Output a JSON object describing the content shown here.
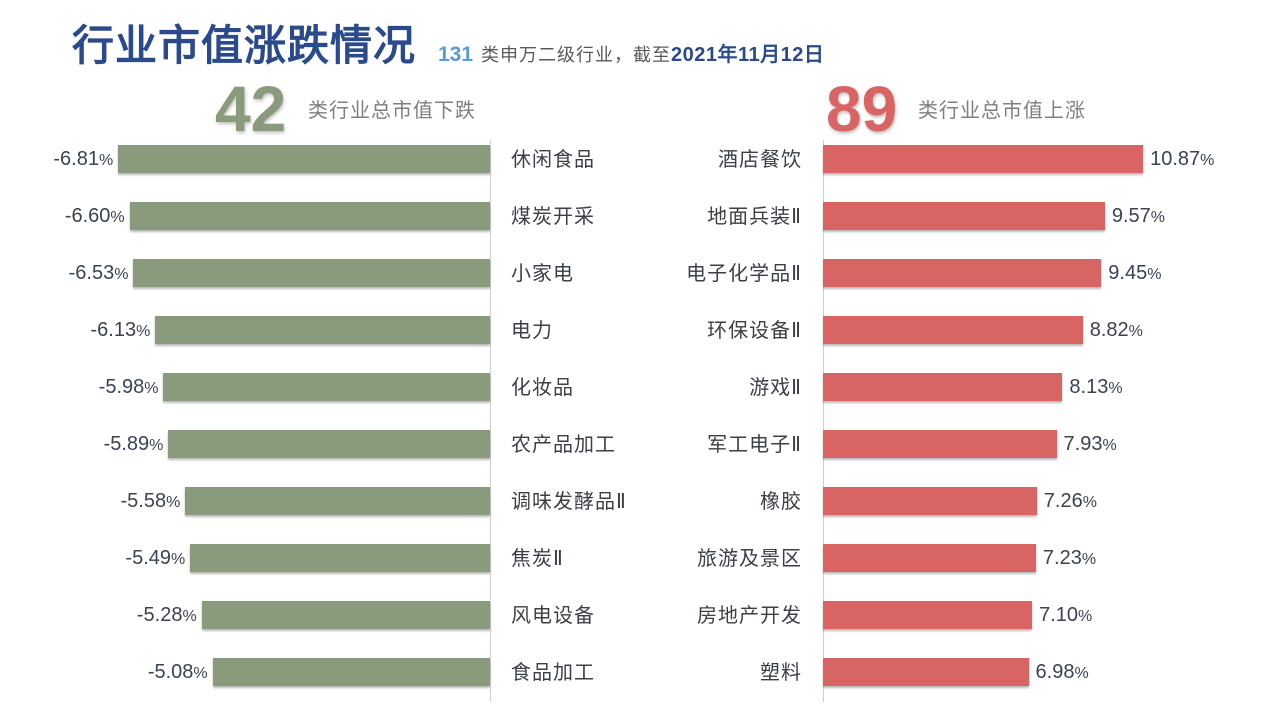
{
  "title": "行业市值涨跌情况",
  "subtitle": {
    "count": "131",
    "text": "类申万二级行业，截至",
    "date": "2021年11月12日"
  },
  "decline_header": {
    "count": "42",
    "label": "类行业总市值下跌"
  },
  "rise_header": {
    "count": "89",
    "label": "类行业总市值上涨"
  },
  "colors": {
    "title": "#2b4a8b",
    "subtitle_count": "#5b9bd5",
    "subtitle_date": "#2b4a8b",
    "decline": "#8a9a7c",
    "rise": "#d96464"
  },
  "chart_data": [
    {
      "type": "bar",
      "orientation": "horizontal",
      "categories": [
        "休闲食品",
        "煤炭开采",
        "小家电",
        "电力",
        "化妆品",
        "农产品加工",
        "调味发酵品Ⅱ",
        "焦炭Ⅱ",
        "风电设备",
        "食品加工"
      ],
      "values": [
        -6.81,
        -6.6,
        -6.53,
        -6.13,
        -5.98,
        -5.89,
        -5.58,
        -5.49,
        -5.28,
        -5.08
      ],
      "unit": "%",
      "color": "#8a9a7c"
    },
    {
      "type": "bar",
      "orientation": "horizontal",
      "categories": [
        "酒店餐饮",
        "地面兵装Ⅱ",
        "电子化学品Ⅱ",
        "环保设备Ⅱ",
        "游戏Ⅱ",
        "军工电子Ⅱ",
        "橡胶",
        "旅游及景区",
        "房地产开发",
        "塑料"
      ],
      "values": [
        10.87,
        9.57,
        9.45,
        8.82,
        8.13,
        7.93,
        7.26,
        7.23,
        7.1,
        6.98
      ],
      "unit": "%",
      "color": "#d96464"
    }
  ]
}
